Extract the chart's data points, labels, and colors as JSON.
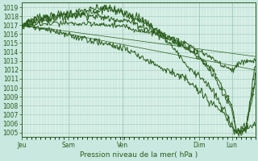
{
  "bg_color": "#c8e8e0",
  "grid_color_major": "#a0c8b8",
  "grid_color_minor": "#b8dcd0",
  "line_color": "#2a5c1a",
  "plot_bg": "#d8f0e8",
  "xlabel_text": "Pression niveau de la mer( hPa )",
  "x_ticks_labels": [
    "Jeu",
    "Sam",
    "Ven",
    "Dim",
    "Lun"
  ],
  "x_ticks_pos": [
    0.0,
    0.2,
    0.43,
    0.76,
    0.9
  ],
  "ylim_min": 1004.5,
  "ylim_max": 1019.5,
  "yticks": [
    1005,
    1006,
    1007,
    1008,
    1009,
    1010,
    1011,
    1012,
    1013,
    1014,
    1015,
    1016,
    1017,
    1018,
    1019
  ],
  "tick_fontsize": 5.5,
  "xlabel_fontsize": 6.5
}
